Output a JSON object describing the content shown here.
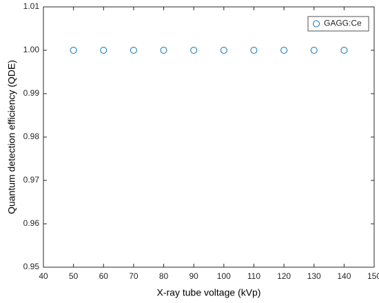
{
  "chart_data": {
    "type": "scatter",
    "xlabel": "X-ray tube voltage (kVp)",
    "ylabel": "Quantum detection efficiency (QDE)",
    "series": [
      {
        "name": "GAGG:Ce",
        "color": "#0072bd",
        "x": [
          50,
          60,
          70,
          80,
          90,
          100,
          110,
          120,
          130,
          140
        ],
        "values": [
          1,
          1,
          1,
          1,
          1,
          1,
          1,
          1,
          1,
          1
        ]
      }
    ],
    "xlim": [
      40,
      150
    ],
    "xticks": [
      40,
      50,
      60,
      70,
      80,
      90,
      100,
      110,
      120,
      130,
      140,
      150
    ],
    "ylim": [
      0.95,
      1.01
    ],
    "yticks": [
      0.95,
      0.96,
      0.97,
      0.98,
      0.99,
      {
        "value": 1,
        "label": "1.00"
      },
      1.01
    ],
    "grid": false,
    "legend": "top-right"
  }
}
